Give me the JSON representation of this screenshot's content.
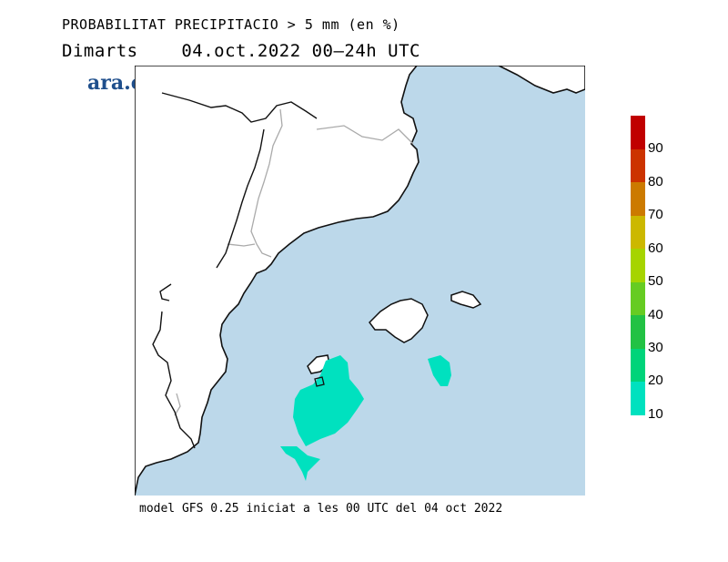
{
  "header": {
    "title": "PROBABILITAT PRECIPITACIO > 5 mm (en %)",
    "subtitle": "Dimarts    04.oct.2022 00–24h UTC"
  },
  "brand": {
    "logo_text": "ara.cat",
    "color": "#1f4f8c"
  },
  "map": {
    "sea_color": "#bcd8ea",
    "land_color": "#ffffff",
    "precip_color_10": "#00e1bf"
  },
  "legend": {
    "levels": [
      {
        "label": "90",
        "color": "#c00000"
      },
      {
        "label": "80",
        "color": "#cc3300"
      },
      {
        "label": "70",
        "color": "#cc7a00"
      },
      {
        "label": "60",
        "color": "#ccb800"
      },
      {
        "label": "50",
        "color": "#a6d400"
      },
      {
        "label": "40",
        "color": "#66cc22"
      },
      {
        "label": "30",
        "color": "#22c244"
      },
      {
        "label": "20",
        "color": "#00d47a"
      },
      {
        "label": "10",
        "color": "#00e1bf"
      }
    ]
  },
  "footer": {
    "text": "model GFS 0.25 iniciat a les 00 UTC del 04 oct 2022"
  }
}
